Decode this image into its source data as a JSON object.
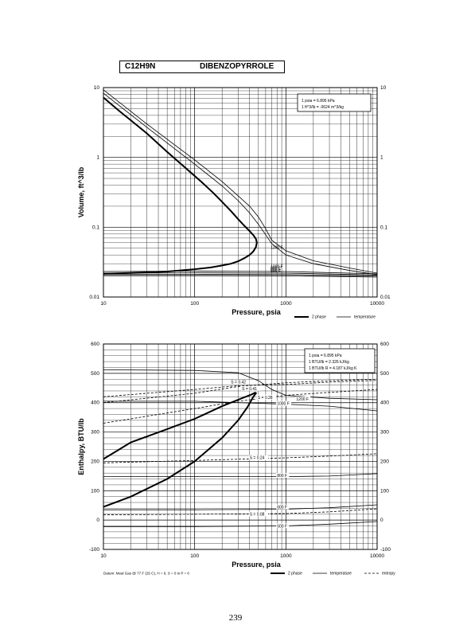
{
  "header": {
    "formula": "C12H9N",
    "compound": "DIBENZOPYRROLE"
  },
  "page_number": "239",
  "footnote": "Datum: Meal Gas @ 77 F (25 C), H = 0, S = 0 in P = 0",
  "chart_data": [
    {
      "type": "line",
      "xscale": "log",
      "yscale": "log",
      "xlim": [
        10,
        10000
      ],
      "ylim": [
        0.01,
        10
      ],
      "xlabel": "Pressure,  psia",
      "ylabel": "Volume, ft^3/lb",
      "xticks": [
        "10",
        "100",
        "1000",
        "10000"
      ],
      "yticks": [
        "0.01",
        "0.1",
        "1",
        "10"
      ],
      "right_yticks": [
        "0.01",
        "0.1",
        "1",
        "10"
      ],
      "conversion_box": [
        "1 psia = 6.895 kPa",
        "1 ft^3/lb = .0624 m^3/kg"
      ],
      "legend": [
        {
          "label": "2 phase",
          "style": "thick"
        },
        {
          "label": "temperature",
          "style": "thin"
        }
      ],
      "series": [
        {
          "name": "2 phase",
          "style": "thick",
          "points": [
            [
              10,
              7.2
            ],
            [
              15,
              4.6
            ],
            [
              20,
              3.4
            ],
            [
              30,
              2.2
            ],
            [
              50,
              1.2
            ],
            [
              80,
              0.7
            ],
            [
              120,
              0.44
            ],
            [
              160,
              0.31
            ],
            [
              200,
              0.23
            ],
            [
              250,
              0.17
            ],
            [
              300,
              0.13
            ],
            [
              350,
              0.105
            ],
            [
              400,
              0.088
            ],
            [
              440,
              0.077
            ],
            [
              470,
              0.068
            ],
            [
              480,
              0.06
            ],
            [
              470,
              0.052
            ],
            [
              440,
              0.045
            ],
            [
              400,
              0.04
            ],
            [
              350,
              0.036
            ],
            [
              300,
              0.0325
            ],
            [
              250,
              0.03
            ],
            [
              200,
              0.0283
            ],
            [
              150,
              0.0265
            ],
            [
              100,
              0.025
            ],
            [
              50,
              0.0232
            ],
            [
              20,
              0.0221
            ],
            [
              10,
              0.0216
            ]
          ]
        },
        {
          "name": "1200 F",
          "style": "thin",
          "points": [
            [
              10,
              9.3
            ],
            [
              30,
              3.0
            ],
            [
              100,
              0.92
            ],
            [
              200,
              0.45
            ],
            [
              300,
              0.28
            ],
            [
              400,
              0.2
            ],
            [
              500,
              0.14
            ],
            [
              600,
              0.095
            ],
            [
              700,
              0.065
            ],
            [
              1000,
              0.046
            ],
            [
              2000,
              0.033
            ],
            [
              5000,
              0.026
            ],
            [
              10000,
              0.022
            ]
          ]
        },
        {
          "name": "",
          "style": "thin",
          "points": [
            [
              10,
              8.3
            ],
            [
              30,
              2.7
            ],
            [
              100,
              0.8
            ],
            [
              200,
              0.39
            ],
            [
              300,
              0.24
            ],
            [
              400,
              0.16
            ],
            [
              500,
              0.11
            ],
            [
              600,
              0.078
            ],
            [
              700,
              0.058
            ],
            [
              1000,
              0.04
            ],
            [
              2000,
              0.03
            ],
            [
              5000,
              0.024
            ],
            [
              10000,
              0.021
            ]
          ]
        },
        {
          "name": "1000 F",
          "style": "thin",
          "points": [
            [
              10,
              0.0232
            ],
            [
              100,
              0.0235
            ],
            [
              1000,
              0.0232
            ],
            [
              10000,
              0.0215
            ]
          ]
        },
        {
          "name": "800 F",
          "style": "thin",
          "points": [
            [
              10,
              0.022
            ],
            [
              100,
              0.0222
            ],
            [
              1000,
              0.022
            ],
            [
              10000,
              0.0207
            ]
          ]
        },
        {
          "name": "600 F",
          "style": "thin",
          "points": [
            [
              10,
              0.0212
            ],
            [
              100,
              0.0212
            ],
            [
              1000,
              0.021
            ],
            [
              10000,
              0.02
            ]
          ]
        },
        {
          "name": "500 F",
          "style": "thin",
          "points": [
            [
              10,
              0.0203
            ],
            [
              100,
              0.0203
            ],
            [
              1000,
              0.0201
            ],
            [
              10000,
              0.0193
            ]
          ]
        }
      ]
    },
    {
      "type": "line",
      "xscale": "log",
      "yscale": "linear",
      "xlim": [
        10,
        10000
      ],
      "ylim": [
        -100,
        600
      ],
      "xlabel": "Pressure,  psia",
      "ylabel": "Enthalpy, BTU/lb",
      "xticks": [
        "10",
        "100",
        "1000",
        "10000"
      ],
      "yticks": [
        "-100",
        "0",
        "100",
        "200",
        "300",
        "400",
        "500",
        "600"
      ],
      "right_yticks": [
        "-100",
        "0",
        "100",
        "200",
        "300",
        "400",
        "500",
        "600"
      ],
      "conversion_box": [
        "1 psia = 6.895 kPa",
        "1 BTU/lb = 2.326 kJ/kg",
        "1 BTU/lb R = 4.187 kJ/kg K"
      ],
      "legend": [
        {
          "label": "2 phase",
          "style": "thick"
        },
        {
          "label": "temperature",
          "style": "thin"
        },
        {
          "label": "entropy",
          "style": "dashed"
        }
      ],
      "series": [
        {
          "name": "2 phase",
          "style": "thick",
          "points": [
            [
              10,
              45
            ],
            [
              20,
              80
            ],
            [
              50,
              140
            ],
            [
              100,
              200
            ],
            [
              200,
              280
            ],
            [
              300,
              340
            ],
            [
              380,
              385
            ],
            [
              440,
              420
            ],
            [
              470,
              432
            ],
            [
              460,
              434
            ],
            [
              420,
              428
            ],
            [
              300,
              410
            ],
            [
              200,
              388
            ],
            [
              100,
              345
            ],
            [
              50,
              310
            ],
            [
              20,
              265
            ],
            [
              10,
              208
            ]
          ]
        },
        {
          "name": "1200 F",
          "style": "thin",
          "points": [
            [
              10,
              512
            ],
            [
              100,
              510
            ],
            [
              300,
              502
            ],
            [
              500,
              475
            ],
            [
              700,
              445
            ],
            [
              1000,
              425
            ],
            [
              3000,
              415
            ],
            [
              10000,
              410
            ]
          ]
        },
        {
          "name": "1000 F",
          "style": "thin",
          "points": [
            [
              10,
              405
            ],
            [
              100,
              405
            ],
            [
              1000,
              395
            ],
            [
              3000,
              388
            ],
            [
              10000,
              372
            ]
          ]
        },
        {
          "name": "800 F",
          "style": "thin",
          "points": [
            [
              10,
              148
            ],
            [
              100,
              148
            ],
            [
              1000,
              148
            ],
            [
              3000,
              150
            ],
            [
              10000,
              158
            ]
          ]
        },
        {
          "name": "600 F",
          "style": "thin",
          "points": [
            [
              10,
              35
            ],
            [
              100,
              35
            ],
            [
              1000,
              37
            ],
            [
              3000,
              42
            ],
            [
              10000,
              52
            ]
          ]
        },
        {
          "name": "500 F",
          "style": "thin",
          "points": [
            [
              10,
              -22
            ],
            [
              100,
              -22
            ],
            [
              1000,
              -20
            ],
            [
              3000,
              -14
            ],
            [
              10000,
              -5
            ]
          ]
        },
        {
          "name": "S = 0.42",
          "style": "dashed",
          "points": [
            [
              10,
              400
            ],
            [
              100,
              432
            ],
            [
              300,
              455
            ],
            [
              1000,
              468
            ],
            [
              3000,
              475
            ],
            [
              10000,
              480
            ]
          ]
        },
        {
          "name": "S = 0.41",
          "style": "dashed",
          "points": [
            [
              10,
              420
            ],
            [
              100,
              445
            ],
            [
              300,
              458
            ],
            [
              1000,
              462
            ],
            [
              3000,
              470
            ],
            [
              10000,
              476
            ]
          ]
        },
        {
          "name": "S = 0.28",
          "style": "dashed",
          "points": [
            [
              10,
              330
            ],
            [
              100,
              380
            ],
            [
              300,
              405
            ],
            [
              1000,
              425
            ],
            [
              3000,
              435
            ],
            [
              10000,
              445
            ]
          ]
        },
        {
          "name": "S = 0.24",
          "style": "dashed",
          "points": [
            [
              10,
              195
            ],
            [
              100,
              203
            ],
            [
              1000,
              212
            ],
            [
              3000,
              218
            ],
            [
              10000,
              226
            ]
          ]
        },
        {
          "name": "S = 0.08",
          "style": "dashed",
          "points": [
            [
              10,
              18
            ],
            [
              100,
              20
            ],
            [
              1000,
              22
            ],
            [
              3000,
              28
            ],
            [
              10000,
              38
            ]
          ]
        }
      ],
      "curve_labels": [
        {
          "text": "S = 0.42",
          "x": 250,
          "y": 468
        },
        {
          "text": "S = 0.41",
          "x": 330,
          "y": 446
        },
        {
          "text": "S = 0.28",
          "x": 490,
          "y": 416
        },
        {
          "text": "1200 F",
          "x": 1300,
          "y": 410
        },
        {
          "text": "1000 F",
          "x": 800,
          "y": 395
        },
        {
          "text": "S = 0.24",
          "x": 400,
          "y": 210
        },
        {
          "text": "800 F",
          "x": 800,
          "y": 150
        },
        {
          "text": "600 F",
          "x": 800,
          "y": 42
        },
        {
          "text": "S = 0.08",
          "x": 400,
          "y": 18
        },
        {
          "text": "500 F",
          "x": 800,
          "y": -22
        }
      ]
    }
  ]
}
